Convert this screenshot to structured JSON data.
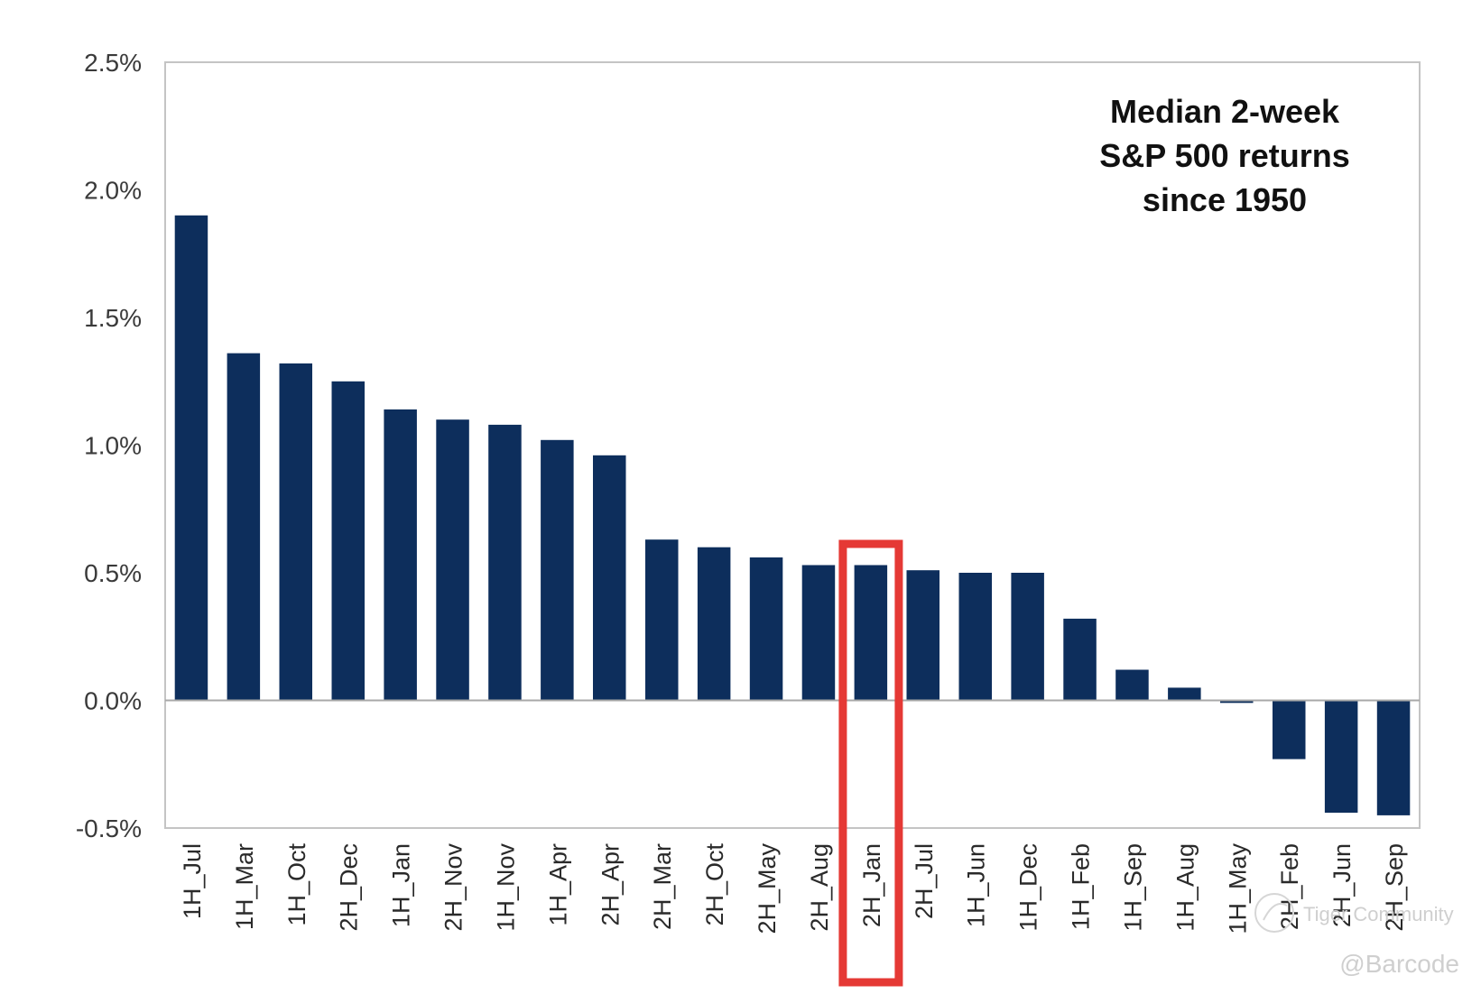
{
  "chart_data": {
    "type": "bar",
    "title_lines": [
      "Median 2-week",
      "S&P 500 returns",
      "since 1950"
    ],
    "xlabel": "",
    "ylabel": "",
    "ylim": [
      -0.5,
      2.5
    ],
    "yticks": [
      2.5,
      2.0,
      1.5,
      1.0,
      0.5,
      0.0,
      -0.5
    ],
    "ytick_labels": [
      "2.5%",
      "2.0%",
      "1.5%",
      "1.0%",
      "0.5%",
      "0.0%",
      "-0.5%"
    ],
    "grid": false,
    "bar_color": "#0d2e5c",
    "highlight_color": "#e53935",
    "highlight_category": "2H_Jan",
    "categories": [
      "1H_Jul",
      "1H_Mar",
      "1H_Oct",
      "2H_Dec",
      "1H_Jan",
      "2H_Nov",
      "1H_Nov",
      "1H_Apr",
      "2H_Apr",
      "2H_Mar",
      "2H_Oct",
      "2H_May",
      "2H_Aug",
      "2H_Jan",
      "2H_Jul",
      "1H_Jun",
      "1H_Dec",
      "1H_Feb",
      "1H_Sep",
      "1H_Aug",
      "1H_May",
      "2H_Feb",
      "2H_Jun",
      "2H_Sep"
    ],
    "values": [
      1.9,
      1.36,
      1.32,
      1.25,
      1.14,
      1.1,
      1.08,
      1.02,
      0.96,
      0.63,
      0.6,
      0.56,
      0.53,
      0.53,
      0.51,
      0.5,
      0.5,
      0.32,
      0.12,
      0.05,
      -0.01,
      -0.23,
      -0.44,
      -0.45
    ]
  },
  "watermark": {
    "community": "Tiger Community",
    "handle": "@Barcode"
  }
}
